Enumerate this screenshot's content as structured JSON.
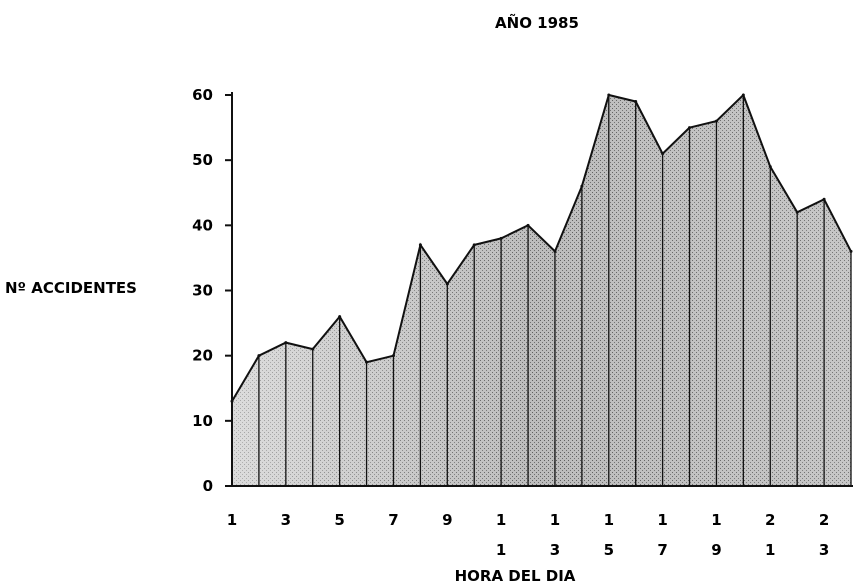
{
  "chart_data": {
    "type": "area",
    "title": "AÑO 1985",
    "xlabel": "HORA DEL DIA",
    "ylabel": "Nº ACCIDENTES",
    "x": [
      1,
      2,
      3,
      4,
      5,
      6,
      7,
      8,
      9,
      10,
      11,
      12,
      13,
      14,
      15,
      16,
      17,
      18,
      19,
      20,
      21,
      22,
      23,
      24
    ],
    "values": [
      13,
      20,
      22,
      21,
      26,
      19,
      20,
      37,
      31,
      37,
      38,
      40,
      36,
      46,
      60,
      59,
      51,
      55,
      56,
      60,
      49,
      42,
      44,
      36
    ],
    "ylim": [
      0,
      60
    ],
    "yticks": [
      0,
      10,
      20,
      30,
      40,
      50,
      60
    ],
    "xtick_labels": [
      {
        "x": 1,
        "top": "1",
        "bottom": ""
      },
      {
        "x": 3,
        "top": "3",
        "bottom": ""
      },
      {
        "x": 5,
        "top": "5",
        "bottom": ""
      },
      {
        "x": 7,
        "top": "7",
        "bottom": ""
      },
      {
        "x": 9,
        "top": "9",
        "bottom": ""
      },
      {
        "x": 11,
        "top": "1",
        "bottom": "1"
      },
      {
        "x": 13,
        "top": "1",
        "bottom": "3"
      },
      {
        "x": 15,
        "top": "1",
        "bottom": "5"
      },
      {
        "x": 17,
        "top": "1",
        "bottom": "7"
      },
      {
        "x": 19,
        "top": "1",
        "bottom": "9"
      },
      {
        "x": 21,
        "top": "2",
        "bottom": "1"
      },
      {
        "x": 23,
        "top": "2",
        "bottom": "3"
      }
    ],
    "grid": false,
    "colors": {
      "fill": "#9a9a9a",
      "line": "#111111",
      "axis": "#111111"
    }
  }
}
